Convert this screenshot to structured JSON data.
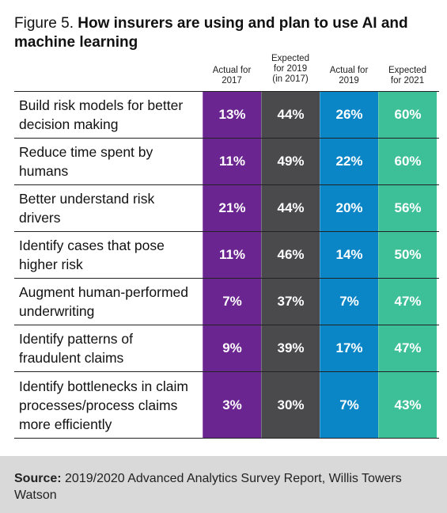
{
  "figure": {
    "label": "Figure 5.",
    "title": "How insurers are using and plan to use AI and machine learning"
  },
  "chart_data": {
    "type": "table",
    "columns": [
      {
        "name": "Actual for 2017",
        "color": "#6b2590"
      },
      {
        "name": "Expected for 2019 (in 2017)",
        "color": "#4a4a4d"
      },
      {
        "name": "Actual for 2019",
        "color": "#0a86c7"
      },
      {
        "name": "Expected for 2021",
        "color": "#3dbf97"
      }
    ],
    "rows": [
      {
        "label": "Build risk models for better decision making",
        "values": [
          "13%",
          "44%",
          "26%",
          "60%"
        ]
      },
      {
        "label": "Reduce time spent by humans",
        "values": [
          "11%",
          "49%",
          "22%",
          "60%"
        ]
      },
      {
        "label": "Better understand risk drivers",
        "values": [
          "21%",
          "44%",
          "20%",
          "56%"
        ]
      },
      {
        "label": "Identify cases that pose higher risk",
        "values": [
          "11%",
          "46%",
          "14%",
          "50%"
        ]
      },
      {
        "label": "Augment human-performed underwriting",
        "values": [
          "7%",
          "37%",
          "7%",
          "47%"
        ]
      },
      {
        "label": "Identify patterns of fraudulent claims",
        "values": [
          "9%",
          "39%",
          "17%",
          "47%"
        ]
      },
      {
        "label": "Identify bottlenecks in claim processes/process claims more efficiently",
        "values": [
          "3%",
          "30%",
          "7%",
          "43%"
        ]
      }
    ]
  },
  "source": {
    "label": "Source:",
    "text": "2019/2020 Advanced Analytics Survey Report, Willis Towers Watson"
  }
}
